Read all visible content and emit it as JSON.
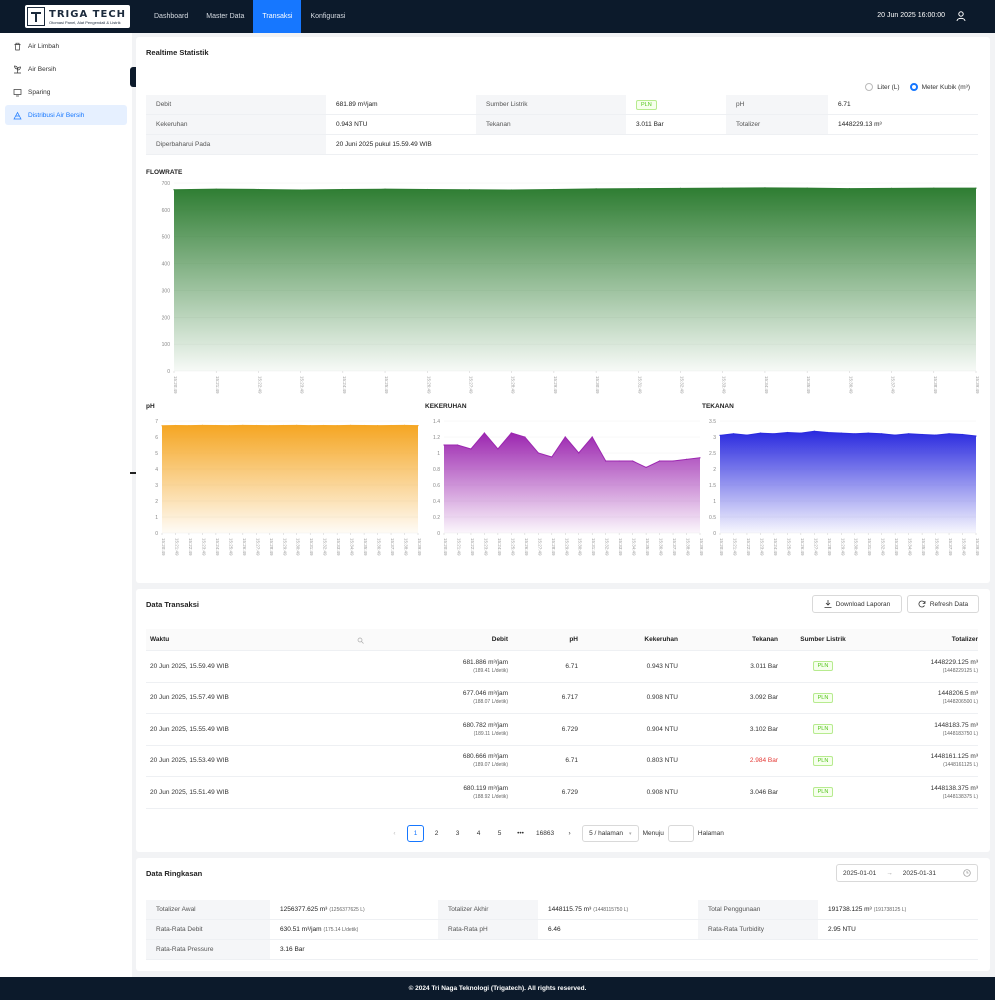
{
  "brand": {
    "title": "TRIGA TECH",
    "subtitle": "Otomasi Panel, Alat Pengendali & Listrik"
  },
  "nav": [
    "Dashboard",
    "Master Data",
    "Transaksi",
    "Konfigurasi"
  ],
  "nav_active_index": 2,
  "datetime": "20 Jun 2025 16:00:00",
  "sidebar": [
    {
      "label": "Air Limbah",
      "icon": "trash-icon"
    },
    {
      "label": "Air Bersih",
      "icon": "plant-icon"
    },
    {
      "label": "Sparing",
      "icon": "monitor-icon"
    },
    {
      "label": "Distribusi Air Bersih",
      "icon": "distribution-icon"
    }
  ],
  "sidebar_active_index": 3,
  "realtime": {
    "title": "Realtime Statistik",
    "unit_options": [
      "Liter (L)",
      "Meter Kubik (m³)"
    ],
    "unit_selected": 1,
    "stats": [
      [
        {
          "label": "Debit",
          "value": "681.89 m³/jam"
        },
        {
          "label": "Sumber Listrik",
          "value": "PLN",
          "badge": true
        },
        {
          "label": "pH",
          "value": "6.71"
        }
      ],
      [
        {
          "label": "Kekeruhan",
          "value": "0.943 NTU"
        },
        {
          "label": "Tekanan",
          "value": "3.011 Bar"
        },
        {
          "label": "Totalizer",
          "value": "1448229.13 m³"
        }
      ],
      [
        {
          "label": "Diperbaharui Pada",
          "value": "20 Juni 2025 pukul 15.59.49 WIB"
        }
      ]
    ]
  },
  "chart_data": [
    {
      "type": "area",
      "title": "FLOWRATE",
      "color": "#2e7d32",
      "ylim": [
        0,
        700
      ],
      "yticks": [
        0,
        100,
        200,
        300,
        400,
        500,
        600,
        700
      ],
      "x": [
        "15:20:49",
        "15:21:49",
        "15:22:49",
        "15:23:49",
        "15:24:49",
        "15:25:49",
        "15:26:49",
        "15:27:49",
        "15:28:49",
        "15:29:49",
        "15:30:49",
        "15:31:49",
        "15:32:49",
        "15:33:49",
        "15:34:49",
        "15:35:49",
        "15:36:49",
        "15:37:49",
        "15:38:49",
        "15:39:49"
      ],
      "values": [
        675,
        677,
        676,
        674,
        676,
        677,
        676,
        675,
        674,
        676,
        678,
        679,
        680,
        681,
        682,
        681,
        679,
        680,
        681,
        681
      ]
    },
    {
      "type": "area",
      "title": "pH",
      "color": "#f5a623",
      "ylim": [
        0,
        7
      ],
      "yticks": [
        0,
        1,
        2,
        3,
        4,
        5,
        6,
        7
      ],
      "x": [
        "15:20:49",
        "15:21:49",
        "15:22:49",
        "15:23:49",
        "15:24:49",
        "15:25:49",
        "15:26:49",
        "15:27:49",
        "15:28:49",
        "15:29:49",
        "15:30:49",
        "15:31:49",
        "15:32:49",
        "15:33:49",
        "15:34:49",
        "15:35:49",
        "15:36:49",
        "15:37:49",
        "15:38:49",
        "15:39:49"
      ],
      "values": [
        6.7,
        6.72,
        6.71,
        6.73,
        6.72,
        6.71,
        6.73,
        6.72,
        6.71,
        6.72,
        6.73,
        6.71,
        6.72,
        6.71,
        6.73,
        6.72,
        6.71,
        6.72,
        6.73,
        6.71
      ]
    },
    {
      "type": "area",
      "title": "KEKERUHAN",
      "color": "#9c27b0",
      "ylim": [
        0,
        1.4
      ],
      "yticks": [
        0,
        0.2,
        0.4,
        0.6,
        0.8,
        1,
        1.2,
        1.4
      ],
      "x": [
        "15:20:49",
        "15:21:49",
        "15:22:49",
        "15:23:49",
        "15:24:49",
        "15:25:49",
        "15:26:49",
        "15:27:49",
        "15:28:49",
        "15:29:49",
        "15:30:49",
        "15:31:49",
        "15:32:49",
        "15:33:49",
        "15:34:49",
        "15:35:49",
        "15:36:49",
        "15:37:49",
        "15:38:49",
        "15:39:49"
      ],
      "values": [
        1.1,
        1.1,
        1.05,
        1.25,
        1.05,
        1.25,
        1.2,
        1.0,
        0.95,
        1.2,
        1.0,
        1.2,
        0.9,
        0.9,
        0.9,
        0.82,
        0.9,
        0.9,
        0.92,
        0.94
      ]
    },
    {
      "type": "area",
      "title": "TEKANAN",
      "color": "#2a2adf",
      "ylim": [
        0,
        3.5
      ],
      "yticks": [
        0,
        0.5,
        1,
        1.5,
        2,
        2.5,
        3,
        3.5
      ],
      "x": [
        "15:20:49",
        "15:21:49",
        "15:22:49",
        "15:23:49",
        "15:24:49",
        "15:25:49",
        "15:26:49",
        "15:27:49",
        "15:28:49",
        "15:29:49",
        "15:30:49",
        "15:31:49",
        "15:32:49",
        "15:33:49",
        "15:34:49",
        "15:35:49",
        "15:36:49",
        "15:37:49",
        "15:38:49",
        "15:39:49"
      ],
      "values": [
        3.05,
        3.1,
        3.06,
        3.12,
        3.1,
        3.14,
        3.12,
        3.18,
        3.14,
        3.12,
        3.1,
        3.12,
        3.1,
        3.06,
        3.1,
        3.08,
        3.06,
        3.1,
        3.08,
        3.03
      ]
    }
  ],
  "transaksi": {
    "title": "Data Transaksi",
    "download_label": "Download Laporan",
    "refresh_label": "Refresh Data",
    "columns": [
      "Waktu",
      "Debit",
      "pH",
      "Kekeruhan",
      "Tekanan",
      "Sumber Listrik",
      "Totalizer"
    ],
    "rows": [
      {
        "waktu": "20 Jun 2025, 15.59.49 WIB",
        "debit": "681.886 m³/jam",
        "debit_sub": "(189.41 L/detik)",
        "ph": "6.71",
        "kekeruhan": "0.943 NTU",
        "tekanan": "3.011 Bar",
        "tekanan_alert": false,
        "sumber": "PLN",
        "totalizer": "1448229.125 m³",
        "totalizer_sub": "(1448229125 L)"
      },
      {
        "waktu": "20 Jun 2025, 15.57.49 WIB",
        "debit": "677.046 m³/jam",
        "debit_sub": "(188.07 L/detik)",
        "ph": "6.717",
        "kekeruhan": "0.908 NTU",
        "tekanan": "3.092 Bar",
        "tekanan_alert": false,
        "sumber": "PLN",
        "totalizer": "1448206.5 m³",
        "totalizer_sub": "(1448206500 L)"
      },
      {
        "waktu": "20 Jun 2025, 15.55.49 WIB",
        "debit": "680.782 m³/jam",
        "debit_sub": "(189.11 L/detik)",
        "ph": "6.729",
        "kekeruhan": "0.904 NTU",
        "tekanan": "3.102 Bar",
        "tekanan_alert": false,
        "sumber": "PLN",
        "totalizer": "1448183.75 m³",
        "totalizer_sub": "(1448183750 L)"
      },
      {
        "waktu": "20 Jun 2025, 15.53.49 WIB",
        "debit": "680.666 m³/jam",
        "debit_sub": "(189.07 L/detik)",
        "ph": "6.71",
        "kekeruhan": "0.803 NTU",
        "tekanan": "2.984 Bar",
        "tekanan_alert": true,
        "sumber": "PLN",
        "totalizer": "1448161.125 m³",
        "totalizer_sub": "(1448161125 L)"
      },
      {
        "waktu": "20 Jun 2025, 15.51.49 WIB",
        "debit": "680.119 m³/jam",
        "debit_sub": "(188.92 L/detik)",
        "ph": "6.729",
        "kekeruhan": "0.908 NTU",
        "tekanan": "3.046 Bar",
        "tekanan_alert": false,
        "sumber": "PLN",
        "totalizer": "1448138.375 m³",
        "totalizer_sub": "(1448138375 L)"
      }
    ],
    "pagination": {
      "pages": [
        "1",
        "2",
        "3",
        "4",
        "5",
        "•••",
        "16863"
      ],
      "active": "1",
      "page_size": "5 / halaman",
      "goto_label": "Menuju",
      "page_label": "Halaman"
    }
  },
  "ringkasan": {
    "title": "Data Ringkasan",
    "date_start": "2025-01-01",
    "date_end": "2025-01-31",
    "items": [
      [
        {
          "label": "Totalizer Awal",
          "value": "1256377.625 m³",
          "sub": "(1256377625 L)"
        },
        {
          "label": "Totalizer Akhir",
          "value": "1448115.75 m³",
          "sub": "(1448115750 L)"
        },
        {
          "label": "Total Penggunaan",
          "value": "191738.125 m³",
          "sub": "(191738125 L)"
        }
      ],
      [
        {
          "label": "Rata-Rata Debit",
          "value": "630.51 m³/jam",
          "sub": "(175.14 L/detik)"
        },
        {
          "label": "Rata-Rata pH",
          "value": "6.46",
          "sub": ""
        },
        {
          "label": "Rata-Rata Turbidity",
          "value": "2.95 NTU",
          "sub": ""
        }
      ],
      [
        {
          "label": "Rata-Rata Pressure",
          "value": "3.16 Bar",
          "sub": ""
        }
      ]
    ]
  },
  "footer": "© 2024 Tri Naga Teknologi (Trigatech). All rights reserved.",
  "colors": {
    "nav_bg": "#0c1a2b",
    "accent": "#1677ff",
    "pln_badge": "#52c41a",
    "alert": "#e53935"
  }
}
